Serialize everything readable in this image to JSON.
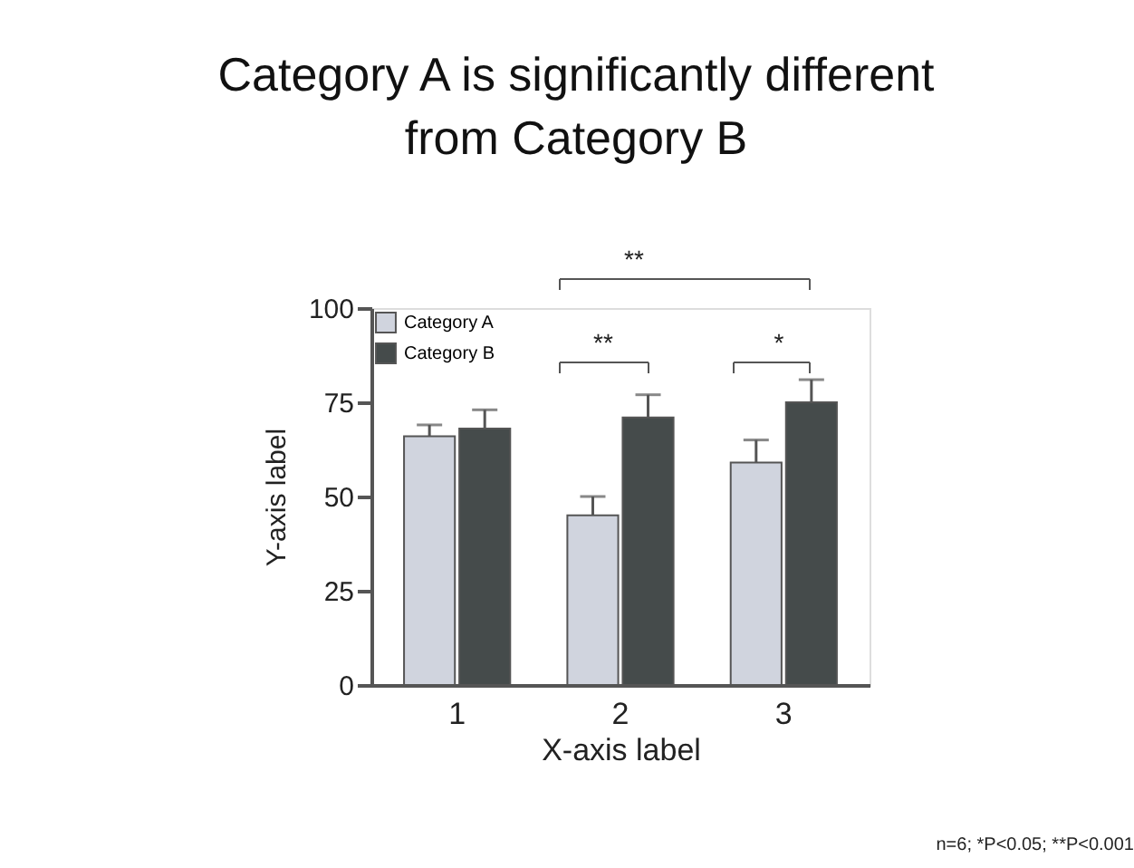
{
  "chart_data": {
    "type": "bar",
    "title": "Category A is significantly different\nfrom Category B",
    "xlabel": "X-axis label",
    "ylabel": "Y-axis label",
    "categories": [
      "1",
      "2",
      "3"
    ],
    "series": [
      {
        "name": "Category A",
        "color": "#d0d4de",
        "values": [
          66,
          45,
          59
        ],
        "errors": [
          3,
          5,
          6
        ]
      },
      {
        "name": "Category B",
        "color": "#454b4b",
        "values": [
          68,
          71,
          75
        ],
        "errors": [
          5,
          6,
          6
        ]
      }
    ],
    "ylim": [
      0,
      100
    ],
    "yticks": [
      0,
      25,
      50,
      75,
      100
    ],
    "grid": false,
    "legend": "top left",
    "annotations": [
      "**",
      "**",
      "*",
      "n=6; *P<0.05; **P<0.001"
    ]
  }
}
